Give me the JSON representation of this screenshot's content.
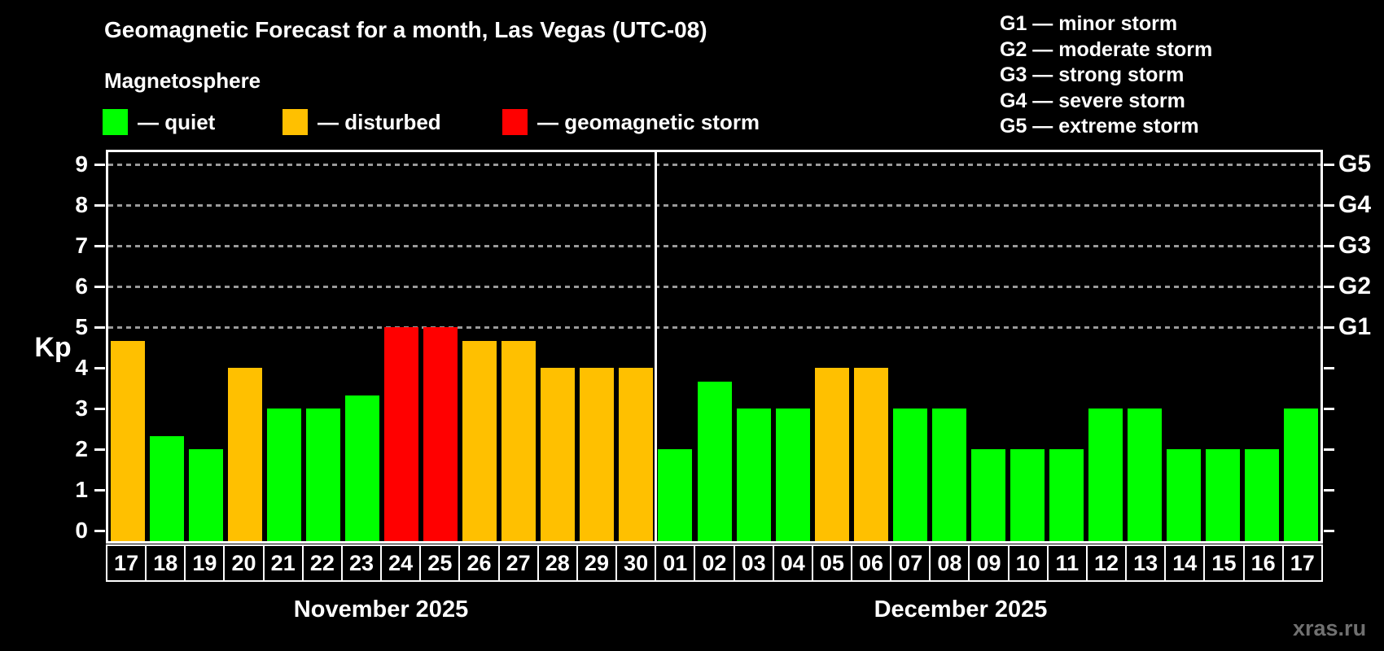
{
  "title": "Geomagnetic Forecast for a month, Las Vegas (UTC-08)",
  "subtitle": "Magnetosphere",
  "legend": {
    "quiet": {
      "label": "— quiet",
      "color": "#00ff00"
    },
    "disturbed": {
      "label": "— disturbed",
      "color": "#ffc000"
    },
    "storm": {
      "label": "— geomagnetic storm",
      "color": "#ff0000"
    }
  },
  "g_legend": [
    "G1 — minor storm",
    "G2 — moderate storm",
    "G3 — strong storm",
    "G4 — severe storm",
    "G5 — extreme storm"
  ],
  "watermark": "xras.ru",
  "chart_data": {
    "type": "bar",
    "title": "Geomagnetic Forecast for a month, Las Vegas (UTC-08)",
    "subtitle": "Magnetosphere",
    "ylabel": "Kp",
    "ylim": [
      0,
      9
    ],
    "yticks": [
      0,
      1,
      2,
      3,
      4,
      5,
      6,
      7,
      8,
      9
    ],
    "gridlines": [
      5,
      6,
      7,
      8,
      9
    ],
    "grid": "dashed horizontal at G-storm levels only",
    "legend_position": "top-left",
    "right_axis_labels": {
      "5": "G1",
      "6": "G2",
      "7": "G3",
      "8": "G4",
      "9": "G5"
    },
    "status_colors": {
      "quiet": "#00ff00",
      "disturbed": "#ffc000",
      "storm": "#ff0000"
    },
    "axis_color": "#ffffff",
    "gridline_color": "#9a9a9a",
    "series": [
      {
        "month": "November 2025",
        "days": [
          "17",
          "18",
          "19",
          "20",
          "21",
          "22",
          "23",
          "24",
          "25",
          "26",
          "27",
          "28",
          "29",
          "30"
        ],
        "values": [
          4.67,
          2.33,
          2,
          4,
          3,
          3,
          3.33,
          5,
          5,
          4.67,
          4.67,
          4,
          4,
          4
        ],
        "status": [
          "disturbed",
          "quiet",
          "quiet",
          "disturbed",
          "quiet",
          "quiet",
          "quiet",
          "storm",
          "storm",
          "disturbed",
          "disturbed",
          "disturbed",
          "disturbed",
          "disturbed"
        ]
      },
      {
        "month": "December 2025",
        "days": [
          "01",
          "02",
          "03",
          "04",
          "05",
          "06",
          "07",
          "08",
          "09",
          "10",
          "11",
          "12",
          "13",
          "14",
          "15",
          "16",
          "17"
        ],
        "values": [
          2,
          3.67,
          3,
          3,
          4,
          4,
          3,
          3,
          2,
          2,
          2,
          3,
          3,
          2,
          2,
          2,
          3
        ],
        "status": [
          "quiet",
          "quiet",
          "quiet",
          "quiet",
          "disturbed",
          "disturbed",
          "quiet",
          "quiet",
          "quiet",
          "quiet",
          "quiet",
          "quiet",
          "quiet",
          "quiet",
          "quiet",
          "quiet",
          "quiet"
        ]
      }
    ]
  }
}
